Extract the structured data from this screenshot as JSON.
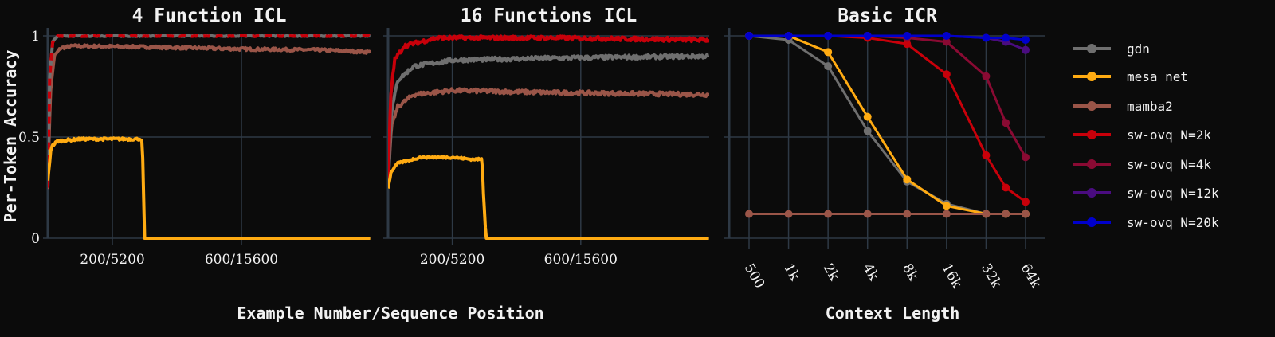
{
  "figure": {
    "ylabel": "Per-Token Accuracy",
    "xlabel_left": "Example Number/Sequence Position",
    "xlabel_right": "Context Length"
  },
  "legend": [
    {
      "label": "gdn",
      "color": "#6f6f6f"
    },
    {
      "label": "mesa_net",
      "color": "#ffab12"
    },
    {
      "label": "mamba2",
      "color": "#9a5548"
    },
    {
      "label": "sw-ovq N=2k",
      "color": "#c8000a"
    },
    {
      "label": "sw-ovq N=4k",
      "color": "#8a0a33"
    },
    {
      "label": "sw-ovq N=12k",
      "color": "#4a0c80"
    },
    {
      "label": "sw-ovq N=20k",
      "color": "#0000cc"
    }
  ],
  "chart_data": [
    {
      "type": "line",
      "title": "4 Function ICL",
      "ylim": [
        0,
        1
      ],
      "xlim": [
        0,
        1000
      ],
      "yticks": [
        "0",
        "0.5",
        "1"
      ],
      "xticks": [
        {
          "value": 200,
          "label": "200/5200"
        },
        {
          "value": 600,
          "label": "600/15600"
        }
      ],
      "grid": true,
      "series": [
        {
          "name": "mamba2",
          "color": "#9a5548",
          "noise": 0.007,
          "points": [
            [
              0,
              0.25
            ],
            [
              8,
              0.72
            ],
            [
              20,
              0.9
            ],
            [
              40,
              0.94
            ],
            [
              80,
              0.95
            ],
            [
              300,
              0.945
            ],
            [
              600,
              0.935
            ],
            [
              850,
              0.93
            ],
            [
              1000,
              0.92
            ]
          ]
        },
        {
          "name": "gdn",
          "color": "#6f6f6f",
          "noise": 0.003,
          "points": [
            [
              0,
              0.25
            ],
            [
              6,
              0.8
            ],
            [
              15,
              0.97
            ],
            [
              30,
              1.0
            ],
            [
              1000,
              1.0
            ]
          ]
        },
        {
          "name": "sw-ovq N=2k",
          "color": "#c8000a",
          "noise": 0.003,
          "dash": "9 7",
          "points": [
            [
              0,
              0.25
            ],
            [
              6,
              0.8
            ],
            [
              15,
              0.97
            ],
            [
              30,
              1.0
            ],
            [
              1000,
              1.0
            ]
          ]
        },
        {
          "name": "mesa_net",
          "color": "#ffab12",
          "noise": 0.006,
          "points": [
            [
              0,
              0.28
            ],
            [
              10,
              0.45
            ],
            [
              30,
              0.48
            ],
            [
              100,
              0.49
            ],
            [
              290,
              0.49
            ],
            [
              293,
              0.46
            ],
            [
              300,
              0.0
            ],
            [
              1000,
              0.0
            ]
          ]
        }
      ]
    },
    {
      "type": "line",
      "title": "16 Functions ICL",
      "ylim": [
        0,
        1
      ],
      "xlim": [
        0,
        1000
      ],
      "yticks": [
        "0",
        "0.5",
        "1"
      ],
      "xticks": [
        {
          "value": 200,
          "label": "200/5200"
        },
        {
          "value": 600,
          "label": "600/15600"
        }
      ],
      "grid": true,
      "series": [
        {
          "name": "mamba2",
          "color": "#9a5548",
          "noise": 0.01,
          "points": [
            [
              0,
              0.25
            ],
            [
              10,
              0.55
            ],
            [
              30,
              0.65
            ],
            [
              80,
              0.71
            ],
            [
              200,
              0.73
            ],
            [
              500,
              0.72
            ],
            [
              1000,
              0.71
            ]
          ]
        },
        {
          "name": "gdn",
          "color": "#6f6f6f",
          "noise": 0.01,
          "points": [
            [
              0,
              0.25
            ],
            [
              10,
              0.62
            ],
            [
              30,
              0.78
            ],
            [
              80,
              0.85
            ],
            [
              200,
              0.88
            ],
            [
              500,
              0.89
            ],
            [
              1000,
              0.9
            ]
          ]
        },
        {
          "name": "sw-ovq N=2k",
          "color": "#c8000a",
          "noise": 0.01,
          "points": [
            [
              0,
              0.25
            ],
            [
              8,
              0.7
            ],
            [
              20,
              0.88
            ],
            [
              50,
              0.95
            ],
            [
              150,
              0.99
            ],
            [
              500,
              0.99
            ],
            [
              1000,
              0.98
            ]
          ]
        },
        {
          "name": "mesa_net",
          "color": "#ffab12",
          "noise": 0.005,
          "points": [
            [
              0,
              0.25
            ],
            [
              10,
              0.33
            ],
            [
              30,
              0.37
            ],
            [
              100,
              0.4
            ],
            [
              200,
              0.4
            ],
            [
              260,
              0.39
            ],
            [
              293,
              0.39
            ],
            [
              296,
              0.25
            ],
            [
              305,
              0.0
            ],
            [
              1000,
              0.0
            ]
          ]
        }
      ]
    },
    {
      "type": "line",
      "title": "Basic ICR",
      "ylim": [
        0,
        1
      ],
      "categories": [
        "500",
        "1k",
        "2k",
        "4k",
        "8k",
        "16k",
        "32k",
        "64k"
      ],
      "x": [
        0,
        1,
        2,
        3,
        4,
        5,
        6,
        6.5,
        7
      ],
      "yticks": [
        "0",
        "0.5",
        "1"
      ],
      "grid": true,
      "series": [
        {
          "name": "gdn",
          "color": "#6f6f6f",
          "values": [
            1.0,
            0.98,
            0.85,
            0.53,
            0.28,
            0.17,
            0.12,
            0.12,
            0.12
          ]
        },
        {
          "name": "mesa_net",
          "color": "#ffab12",
          "values": [
            1.0,
            1.0,
            0.92,
            0.6,
            0.29,
            0.16,
            0.12,
            0.12,
            0.12
          ]
        },
        {
          "name": "mamba2",
          "color": "#9a5548",
          "values": [
            0.12,
            0.12,
            0.12,
            0.12,
            0.12,
            0.12,
            0.12,
            0.12,
            0.12
          ]
        },
        {
          "name": "sw-ovq N=2k",
          "color": "#c8000a",
          "values": [
            1.0,
            1.0,
            1.0,
            0.99,
            0.96,
            0.81,
            0.41,
            0.25,
            0.18
          ]
        },
        {
          "name": "sw-ovq N=4k",
          "color": "#8a0a33",
          "values": [
            1.0,
            1.0,
            1.0,
            1.0,
            0.99,
            0.97,
            0.8,
            0.57,
            0.4
          ]
        },
        {
          "name": "sw-ovq N=12k",
          "color": "#4a0c80",
          "values": [
            1.0,
            1.0,
            1.0,
            1.0,
            1.0,
            1.0,
            0.99,
            0.97,
            0.93
          ]
        },
        {
          "name": "sw-ovq N=20k",
          "color": "#0000cc",
          "values": [
            1.0,
            1.0,
            1.0,
            1.0,
            1.0,
            1.0,
            0.99,
            0.99,
            0.98
          ]
        }
      ]
    }
  ]
}
